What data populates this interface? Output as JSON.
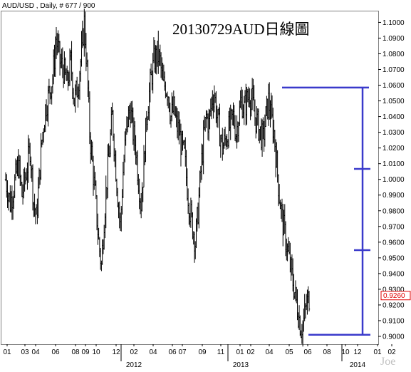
{
  "header": {
    "symbol_info": "AUD/USD , Daily, # 677 / 900"
  },
  "chart_data": {
    "type": "bar",
    "title": "20130729AUD日線圖",
    "symbol": "AUD/USD",
    "timeframe": "Daily",
    "ylim": [
      0.895,
      1.107
    ],
    "y_ticks": [
      0.9,
      0.91,
      0.92,
      0.93,
      0.94,
      0.95,
      0.96,
      0.97,
      0.98,
      0.99,
      1.0,
      1.01,
      1.02,
      1.03,
      1.04,
      1.05,
      1.06,
      1.07,
      1.08,
      1.09,
      1.1
    ],
    "y_tick_labels": [
      "0.9000",
      "0.9100",
      "0.9200",
      "0.9300",
      "0.9400",
      "0.9500",
      "0.9600",
      "0.9700",
      "0.9800",
      "0.9900",
      "1.0000",
      "1.0100",
      "1.0200",
      "1.0300",
      "1.0400",
      "1.0500",
      "1.0600",
      "1.0700",
      "1.0800",
      "1.0900",
      "1.1000"
    ],
    "last_price": 0.926,
    "last_price_label": "0.9260",
    "x_ticks": [
      "01",
      "03",
      "04",
      "06",
      "08",
      "09",
      "10",
      "12",
      "02",
      "04",
      "06",
      "07",
      "09",
      "11",
      "01",
      "02",
      "04",
      "05",
      "06",
      "08",
      "10",
      "12",
      "01",
      "02"
    ],
    "year_labels": [
      "2012",
      "2013",
      "2014"
    ],
    "price_path": [
      [
        0,
        1.0
      ],
      [
        5,
        0.985
      ],
      [
        9,
        0.995
      ],
      [
        14,
        1.01
      ],
      [
        18,
        0.99
      ],
      [
        23,
        1.005
      ],
      [
        27,
        1.02
      ],
      [
        31,
        0.985
      ],
      [
        34,
        0.975
      ],
      [
        37,
        1.0
      ],
      [
        40,
        1.025
      ],
      [
        44,
        1.045
      ],
      [
        48,
        1.055
      ],
      [
        52,
        1.065
      ],
      [
        56,
        1.09
      ],
      [
        60,
        1.075
      ],
      [
        64,
        1.07
      ],
      [
        68,
        1.06
      ],
      [
        72,
        1.075
      ],
      [
        76,
        1.05
      ],
      [
        80,
        1.06
      ],
      [
        84,
        1.08
      ],
      [
        87,
        1.1
      ],
      [
        90,
        1.07
      ],
      [
        93,
        1.03
      ],
      [
        96,
        1.01
      ],
      [
        99,
        0.99
      ],
      [
        103,
        0.96
      ],
      [
        106,
        0.945
      ],
      [
        109,
        0.975
      ],
      [
        112,
        1.0
      ],
      [
        115,
        1.02
      ],
      [
        118,
        1.04
      ],
      [
        121,
        1.015
      ],
      [
        124,
        0.99
      ],
      [
        127,
        0.97
      ],
      [
        130,
        1.005
      ],
      [
        134,
        1.035
      ],
      [
        138,
        1.045
      ],
      [
        141,
        1.03
      ],
      [
        144,
        1.02
      ],
      [
        147,
        1.0
      ],
      [
        150,
        0.985
      ],
      [
        153,
        1.01
      ],
      [
        156,
        1.04
      ],
      [
        160,
        1.06
      ],
      [
        164,
        1.075
      ],
      [
        168,
        1.08
      ],
      [
        171,
        1.075
      ],
      [
        174,
        1.06
      ],
      [
        177,
        1.06
      ],
      [
        180,
        1.055
      ],
      [
        183,
        1.04
      ],
      [
        186,
        1.045
      ],
      [
        189,
        1.035
      ],
      [
        192,
        1.03
      ],
      [
        195,
        1.02
      ],
      [
        198,
        1.015
      ],
      [
        201,
        0.995
      ],
      [
        204,
        0.98
      ],
      [
        207,
        0.97
      ],
      [
        210,
        0.96
      ],
      [
        213,
        0.98
      ],
      [
        216,
        1.005
      ],
      [
        219,
        1.025
      ],
      [
        222,
        1.04
      ],
      [
        225,
        1.035
      ],
      [
        228,
        1.05
      ],
      [
        231,
        1.055
      ],
      [
        234,
        1.04
      ],
      [
        237,
        1.03
      ],
      [
        240,
        1.02
      ],
      [
        243,
        1.025
      ],
      [
        246,
        1.03
      ],
      [
        249,
        1.035
      ],
      [
        252,
        1.04
      ],
      [
        255,
        1.03
      ],
      [
        258,
        1.04
      ],
      [
        261,
        1.05
      ],
      [
        264,
        1.045
      ],
      [
        267,
        1.05
      ],
      [
        270,
        1.055
      ],
      [
        273,
        1.05
      ],
      [
        276,
        1.04
      ],
      [
        279,
        1.035
      ],
      [
        282,
        1.03
      ],
      [
        285,
        1.025
      ],
      [
        288,
        1.04
      ],
      [
        291,
        1.05
      ],
      [
        294,
        1.04
      ],
      [
        297,
        1.03
      ],
      [
        300,
        1.01
      ],
      [
        303,
        0.99
      ],
      [
        306,
        0.975
      ],
      [
        309,
        0.965
      ],
      [
        312,
        0.955
      ],
      [
        315,
        0.945
      ],
      [
        318,
        0.935
      ],
      [
        321,
        0.925
      ],
      [
        324,
        0.915
      ],
      [
        327,
        0.905
      ],
      [
        330,
        0.91
      ],
      [
        333,
        0.92
      ],
      [
        336,
        0.925
      ]
    ],
    "annotation_levels": [
      1.0585,
      1.0067,
      0.9549,
      0.901
    ]
  }
}
